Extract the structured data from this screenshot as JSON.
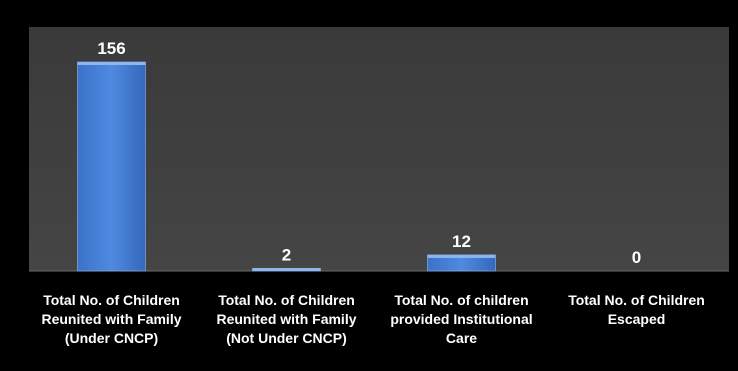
{
  "chart_data": {
    "type": "bar",
    "categories": [
      [
        "Total No. of Children",
        "Reunited with Family",
        "(Under CNCP)"
      ],
      [
        "Total No. of Children",
        "Reunited with Family",
        "(Not Under CNCP)"
      ],
      [
        "Total No. of children",
        "provided Institutional",
        "Care"
      ],
      [
        "Total No. of Children",
        "Escaped"
      ]
    ],
    "values": [
      156,
      2,
      12,
      0
    ],
    "data_labels": [
      "156",
      "2",
      "12",
      "0"
    ],
    "ylim": [
      0,
      160
    ],
    "grid": false,
    "legend": "none",
    "colors": {
      "plot_background": "#404040",
      "bar_top": "#5b95e0",
      "bar_bottom": "#2d63b5",
      "bar_edge": "#8fb8ee",
      "text": "#ffffff"
    }
  }
}
